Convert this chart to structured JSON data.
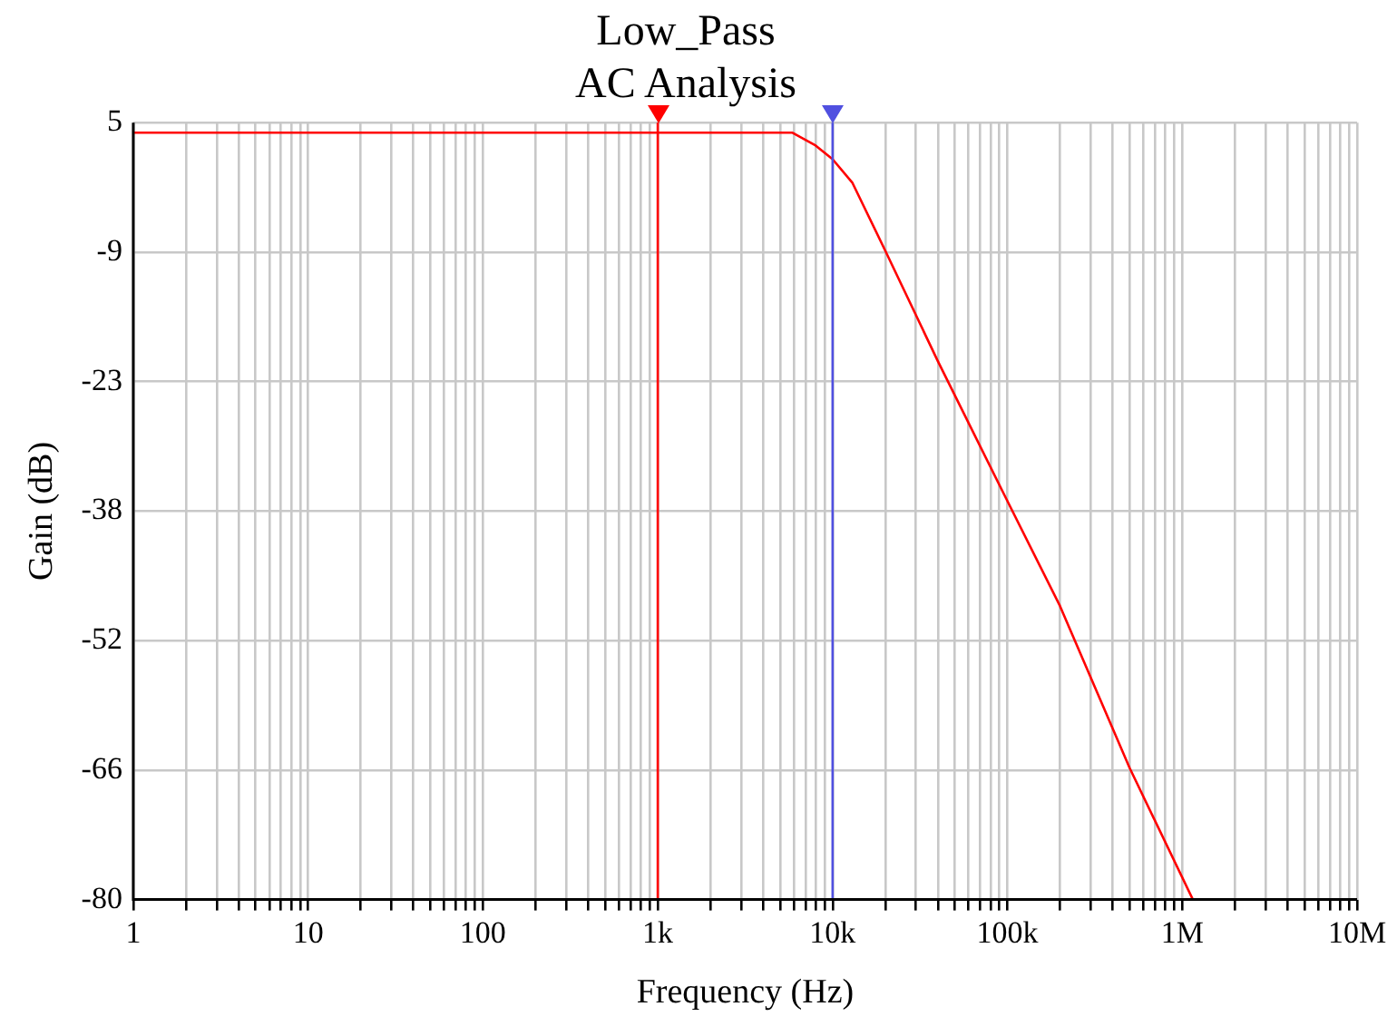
{
  "chart_data": {
    "type": "line",
    "title": "Low_Pass",
    "subtitle": "AC Analysis",
    "xlabel": "Frequency (Hz)",
    "ylabel": "Gain (dB)",
    "log": "x",
    "grid": true,
    "legend": false,
    "marker": "none",
    "line_style": "solid",
    "xlim": [
      1,
      10000000
    ],
    "xticks": [
      {
        "value": 1,
        "label": "1"
      },
      {
        "value": 10,
        "label": "10"
      },
      {
        "value": 100,
        "label": "100"
      },
      {
        "value": 1000,
        "label": "1k"
      },
      {
        "value": 10000,
        "label": "10k"
      },
      {
        "value": 100000,
        "label": "100k"
      },
      {
        "value": 1000000,
        "label": "1M"
      },
      {
        "value": 10000000,
        "label": "10M"
      }
    ],
    "ylim": [
      -80,
      5
    ],
    "yticks": [
      {
        "value": 5,
        "label": "5"
      },
      {
        "value": -9.17,
        "label": "-9"
      },
      {
        "value": -23.33,
        "label": "-23"
      },
      {
        "value": -37.5,
        "label": "-38"
      },
      {
        "value": -51.67,
        "label": "-52"
      },
      {
        "value": -65.83,
        "label": "-66"
      },
      {
        "value": -80,
        "label": "-80"
      }
    ],
    "series": [
      {
        "color": "#ff0000",
        "x": [
          1,
          5900,
          8000,
          10000,
          13000,
          20000,
          40000,
          97000,
          200000,
          500000,
          1150000
        ],
        "values": [
          3.9,
          3.9,
          2.5,
          1.0,
          -1.6,
          -9.0,
          -21.1,
          -35.9,
          -47.9,
          -65.6,
          -80
        ]
      }
    ],
    "ref_lines": [
      {
        "axis": "x",
        "value": 1000,
        "color": "#ff0000"
      },
      {
        "axis": "x",
        "value": 10000,
        "color": "#5050e0"
      }
    ]
  }
}
